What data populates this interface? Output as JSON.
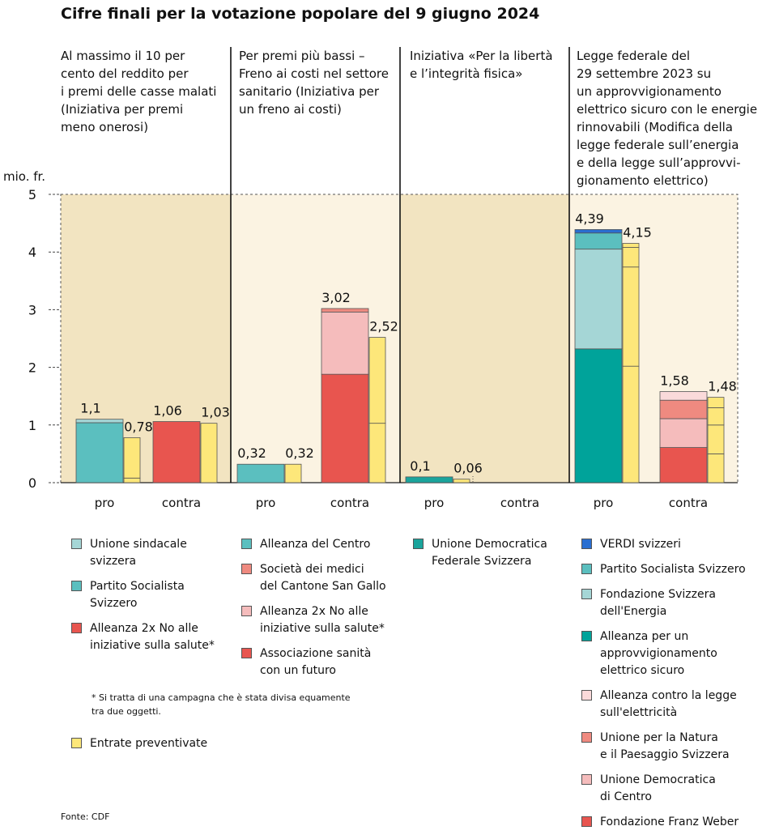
{
  "title": "Cifre finali per la votazione popolare del 9 giugno 2024",
  "y_unit": "mio. fr.",
  "questions": [
    "Al massimo il 10 per\ncento del reddito per\ni premi delle casse malati\n(Iniziativa per premi\nmeno onerosi)",
    "Per premi più bassi –\nFreno ai costi nel settore\nsanitario (Iniziativa per\nun freno ai costi)",
    "Iniziativa «Per la libertà\ne l’integrità fisica»",
    "Legge federale del\n29 settembre 2023 su\nun approvvigionamento\nelettrico sicuro con le energie\nrinnovabili (Modifica della\nlegge federale sull’energia\ne della legge sull’approvvi-\ngionamento elettrico)"
  ],
  "colors": {
    "panel_bg": "#f2e4c1",
    "budget": "#fde77a",
    "Unione sindacale svizzera": "#a5d6d6",
    "Partito Socialista Svizzero": "#5bbfbf",
    "Alleanza 2x No alle iniziative sulla salute": "#e8554f",
    "Alleanza del Centro": "#5bbfbf",
    "Società dei medici del Cantone San Gallo": "#ef8a80",
    "Alleanza 2x No alle iniziative sulla salute (pink)": "#f5bcbc",
    "Associazione sanità con un futuro": "#e8554f",
    "Unione Democratica Federale Svizzera": "#1aa49c",
    "VERDI svizzeri": "#2a6fd1",
    "Fondazione Svizzera dell'Energia": "#a5d6d6",
    "Alleanza per un approvvigionamento elettrico sicuro": "#00a39a",
    "Alleanza contro la legge sull'elettricità": "#fadada",
    "Unione per la Natura e il Paesaggio Svizzera": "#ef8a80",
    "Unione Democratica di Centro": "#f5bcbc",
    "Fondazione Franz Weber": "#e8554f"
  },
  "chart_data": {
    "type": "bar",
    "ylabel": "mio. fr.",
    "ylim": [
      0,
      5
    ],
    "yticks": [
      0,
      1,
      2,
      3,
      4,
      5
    ],
    "categories": [
      "pro",
      "contra",
      "pro",
      "contra",
      "pro",
      "contra",
      "pro",
      "contra"
    ],
    "groups": [
      {
        "question": 1,
        "pro": {
          "total": 1.1,
          "total_label": "1,1",
          "segments": [
            {
              "name": "Partito Socialista Svizzero",
              "value": 1.04
            },
            {
              "name": "Unione sindacale svizzera",
              "value": 0.06
            }
          ],
          "budget": 0.78,
          "budget_label": "0,78",
          "budget_segments": [
            0.08,
            0.7
          ]
        },
        "contra": {
          "total": 1.06,
          "total_label": "1,06",
          "segments": [
            {
              "name": "Alleanza 2x No alle iniziative sulla salute",
              "value": 1.06
            }
          ],
          "budget": 1.03,
          "budget_label": "1,03",
          "budget_segments": [
            1.03
          ]
        }
      },
      {
        "question": 2,
        "pro": {
          "total": 0.32,
          "total_label": "0,32",
          "segments": [
            {
              "name": "Alleanza del Centro",
              "value": 0.32
            }
          ],
          "budget": 0.32,
          "budget_label": "0,32",
          "budget_segments": [
            0.32
          ]
        },
        "contra": {
          "total": 3.02,
          "total_label": "3,02",
          "segments": [
            {
              "name": "Associazione sanità con un futuro",
              "value": 1.88
            },
            {
              "name": "Alleanza 2x No alle iniziative sulla salute (pink)",
              "value": 1.08
            },
            {
              "name": "Società dei medici del Cantone San Gallo",
              "value": 0.06
            }
          ],
          "budget": 2.52,
          "budget_label": "2,52",
          "budget_segments": [
            1.03,
            1.49
          ]
        }
      },
      {
        "question": 3,
        "pro": {
          "total": 0.1,
          "total_label": "0,1",
          "segments": [
            {
              "name": "Unione Democratica Federale Svizzera",
              "value": 0.1
            }
          ],
          "budget": 0.06,
          "budget_label": "0,06",
          "budget_segments": [
            0.06
          ]
        },
        "contra": {
          "total": 0,
          "total_label": "",
          "segments": [],
          "budget": 0,
          "budget_label": "",
          "budget_segments": []
        }
      },
      {
        "question": 4,
        "pro": {
          "total": 4.39,
          "total_label": "4,39",
          "segments": [
            {
              "name": "Alleanza per un approvvigionamento elettrico sicuro",
              "value": 2.32
            },
            {
              "name": "Fondazione Svizzera dell'Energia",
              "value": 1.73
            },
            {
              "name": "Partito Socialista Svizzero",
              "value": 0.28
            },
            {
              "name": "VERDI svizzeri",
              "value": 0.06
            }
          ],
          "budget": 4.15,
          "budget_label": "4,15",
          "budget_segments": [
            2.02,
            1.72,
            0.34,
            0.07
          ]
        },
        "contra": {
          "total": 1.58,
          "total_label": "1,58",
          "segments": [
            {
              "name": "Fondazione Franz Weber",
              "value": 0.61
            },
            {
              "name": "Unione Democratica di Centro",
              "value": 0.5
            },
            {
              "name": "Unione per la Natura e il Paesaggio Svizzera",
              "value": 0.32
            },
            {
              "name": "Alleanza contro la legge sull'elettricità",
              "value": 0.15
            }
          ],
          "budget": 1.48,
          "budget_label": "1,48",
          "budget_segments": [
            0.5,
            0.5,
            0.3,
            0.18
          ]
        }
      }
    ]
  },
  "legend": [
    [
      {
        "label": "Unione sindacale\nsvizzera",
        "key": "Unione sindacale svizzera"
      },
      {
        "label": "Partito Socialista\n Svizzero",
        "key": "Partito Socialista Svizzero"
      },
      {
        "label": "Alleanza 2x No alle\niniziative sulla salute*",
        "key": "Alleanza 2x No alle iniziative sulla salute"
      }
    ],
    [
      {
        "label": "Alleanza del Centro",
        "key": "Alleanza del Centro"
      },
      {
        "label": "Società dei medici\ndel Cantone San Gallo",
        "key": "Società dei medici del Cantone San Gallo"
      },
      {
        "label": "Alleanza 2x No alle\niniziative sulla salute*",
        "key": "Alleanza 2x No alle iniziative sulla salute (pink)"
      },
      {
        "label": "Associazione sanità\ncon un futuro",
        "key": "Associazione sanità con un futuro"
      }
    ],
    [
      {
        "label": "Unione Democratica\nFederale Svizzera",
        "key": "Unione Democratica Federale Svizzera"
      }
    ],
    [
      {
        "label": "VERDI svizzeri",
        "key": "VERDI svizzeri"
      },
      {
        "label": "Partito Socialista Svizzero",
        "key": "Partito Socialista Svizzero"
      },
      {
        "label": "Fondazione Svizzera\ndell'Energia",
        "key": "Fondazione Svizzera dell'Energia"
      },
      {
        "label": "Alleanza per un\napprovvigionamento\nelettrico sicuro",
        "key": "Alleanza per un approvvigionamento elettrico sicuro"
      },
      {
        "label": "Alleanza contro la legge\nsull'elettricità",
        "key": "Alleanza contro la legge sull'elettricità"
      },
      {
        "label": "Unione per la Natura\ne il Paesaggio Svizzera",
        "key": "Unione per la Natura e il Paesaggio Svizzera"
      },
      {
        "label": "Unione Democratica\ndi Centro",
        "key": "Unione Democratica di Centro"
      },
      {
        "label": "Fondazione Franz Weber",
        "key": "Fondazione Franz Weber"
      }
    ]
  ],
  "budget_legend": "Entrate preventivate",
  "footnote": "* Si tratta di una campagna che è stata divisa equamente\n  tra due oggetti.",
  "source": "Fonte: CDF"
}
